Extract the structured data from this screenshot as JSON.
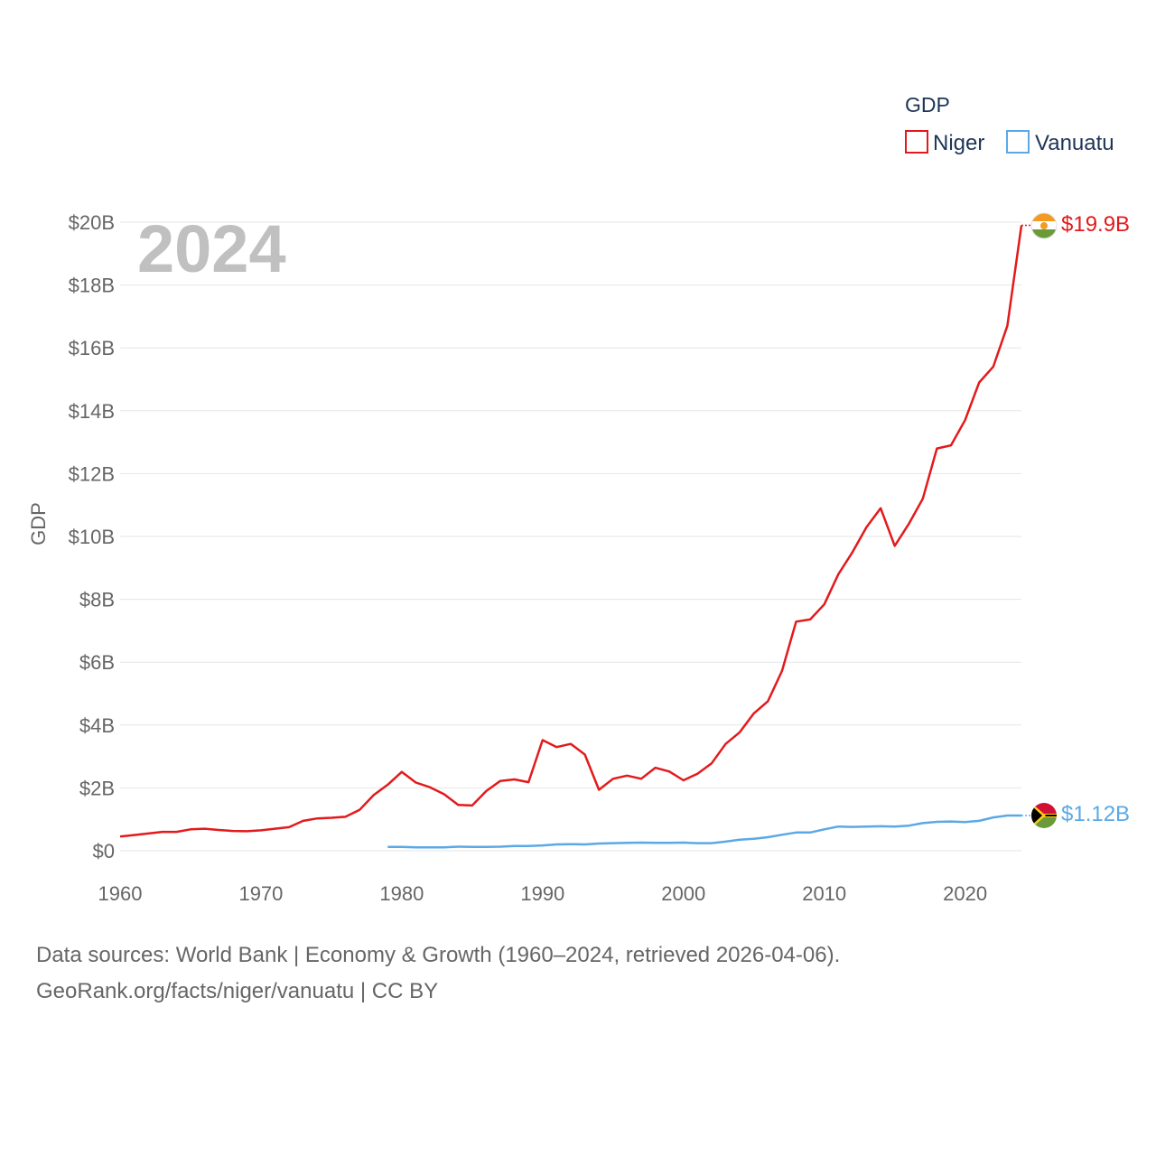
{
  "chart_data": {
    "type": "line",
    "title": "GDP",
    "xlabel": "",
    "ylabel": "GDP",
    "year_watermark": "2024",
    "xlim": [
      1960,
      2024
    ],
    "ylim": [
      0,
      20
    ],
    "y_unit": "billion USD",
    "y_ticks": [
      {
        "value": 0,
        "label": "$0"
      },
      {
        "value": 2,
        "label": "$2B"
      },
      {
        "value": 4,
        "label": "$4B"
      },
      {
        "value": 6,
        "label": "$6B"
      },
      {
        "value": 8,
        "label": "$8B"
      },
      {
        "value": 10,
        "label": "$10B"
      },
      {
        "value": 12,
        "label": "$12B"
      },
      {
        "value": 14,
        "label": "$14B"
      },
      {
        "value": 16,
        "label": "$16B"
      },
      {
        "value": 18,
        "label": "$18B"
      },
      {
        "value": 20,
        "label": "$20B"
      }
    ],
    "x_ticks": [
      {
        "value": 1960,
        "label": "1960"
      },
      {
        "value": 1970,
        "label": "1970"
      },
      {
        "value": 1980,
        "label": "1980"
      },
      {
        "value": 1990,
        "label": "1990"
      },
      {
        "value": 2000,
        "label": "2000"
      },
      {
        "value": 2010,
        "label": "2010"
      },
      {
        "value": 2020,
        "label": "2020"
      }
    ],
    "grid": true,
    "legend_position": "top-right",
    "series": [
      {
        "name": "Niger",
        "color": "#e31a1c",
        "end_label": "$19.9B",
        "flag": "niger-flag",
        "x": [
          1960,
          1961,
          1962,
          1963,
          1964,
          1965,
          1966,
          1967,
          1968,
          1969,
          1970,
          1971,
          1972,
          1973,
          1974,
          1975,
          1976,
          1977,
          1978,
          1979,
          1980,
          1981,
          1982,
          1983,
          1984,
          1985,
          1986,
          1987,
          1988,
          1989,
          1990,
          1991,
          1992,
          1993,
          1994,
          1995,
          1996,
          1997,
          1998,
          1999,
          2000,
          2001,
          2002,
          2003,
          2004,
          2005,
          2006,
          2007,
          2008,
          2009,
          2010,
          2011,
          2012,
          2013,
          2014,
          2015,
          2016,
          2017,
          2018,
          2019,
          2020,
          2021,
          2022,
          2023,
          2024
        ],
        "values": [
          0.45,
          0.5,
          0.55,
          0.6,
          0.6,
          0.68,
          0.7,
          0.66,
          0.63,
          0.62,
          0.65,
          0.7,
          0.75,
          0.95,
          1.03,
          1.05,
          1.08,
          1.3,
          1.77,
          2.1,
          2.51,
          2.17,
          2.02,
          1.8,
          1.46,
          1.44,
          1.9,
          2.22,
          2.27,
          2.18,
          3.52,
          3.3,
          3.4,
          3.06,
          1.94,
          2.29,
          2.39,
          2.29,
          2.64,
          2.52,
          2.24,
          2.45,
          2.78,
          3.4,
          3.77,
          4.37,
          4.76,
          5.72,
          7.29,
          7.36,
          7.84,
          8.8,
          9.5,
          10.3,
          10.9,
          9.7,
          10.4,
          11.2,
          12.8,
          12.9,
          13.7,
          14.9,
          15.4,
          16.7,
          19.9
        ]
      },
      {
        "name": "Vanuatu",
        "color": "#5aa9e6",
        "end_label": "$1.12B",
        "flag": "vanuatu-flag",
        "x": [
          1979,
          1980,
          1981,
          1982,
          1983,
          1984,
          1985,
          1986,
          1987,
          1988,
          1989,
          1990,
          1991,
          1992,
          1993,
          1994,
          1995,
          1996,
          1997,
          1998,
          1999,
          2000,
          2001,
          2002,
          2003,
          2004,
          2005,
          2006,
          2007,
          2008,
          2009,
          2010,
          2011,
          2012,
          2013,
          2014,
          2015,
          2016,
          2017,
          2018,
          2019,
          2020,
          2021,
          2022,
          2023,
          2024
        ],
        "values": [
          0.12,
          0.12,
          0.11,
          0.11,
          0.11,
          0.13,
          0.12,
          0.12,
          0.13,
          0.15,
          0.15,
          0.17,
          0.2,
          0.21,
          0.2,
          0.23,
          0.24,
          0.25,
          0.26,
          0.25,
          0.25,
          0.26,
          0.24,
          0.24,
          0.29,
          0.35,
          0.38,
          0.43,
          0.51,
          0.58,
          0.58,
          0.68,
          0.77,
          0.76,
          0.77,
          0.78,
          0.77,
          0.8,
          0.88,
          0.92,
          0.93,
          0.91,
          0.95,
          1.06,
          1.12,
          1.12
        ]
      }
    ]
  },
  "footer": {
    "line1": "Data sources: World Bank | Economy & Growth (1960–2024, retrieved 2026-04-06).",
    "line2": "GeoRank.org/facts/niger/vanuatu | CC BY"
  }
}
